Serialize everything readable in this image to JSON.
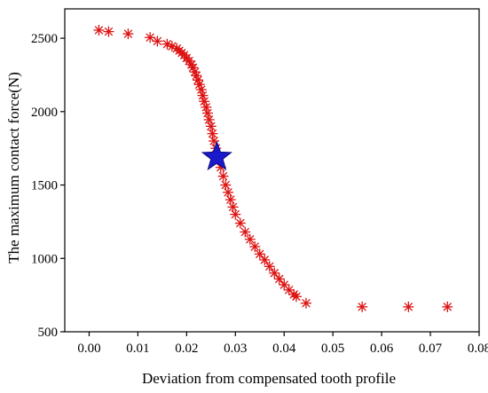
{
  "chart_data": {
    "type": "scatter",
    "title": "",
    "xlabel": "Deviation from compensated tooth profile",
    "ylabel": "The maximum contact force(N)",
    "xlim": [
      -0.005,
      0.08
    ],
    "ylim": [
      500,
      2700
    ],
    "x_ticks": [
      "0.00",
      "0.01",
      "0.02",
      "0.03",
      "0.04",
      "0.05",
      "0.06",
      "0.07",
      "0.08"
    ],
    "y_ticks": [
      "500",
      "1000",
      "1500",
      "2000",
      "2500"
    ],
    "grid": false,
    "legend": "none",
    "colors": {
      "points": "#dd1111",
      "highlight": "#1a1acc"
    },
    "series": [
      {
        "marker": "asterisk",
        "x": [
          0.002,
          0.004,
          0.008,
          0.0125,
          0.014,
          0.016,
          0.017,
          0.018,
          0.0185,
          0.019,
          0.0195,
          0.02,
          0.0205,
          0.021,
          0.0213,
          0.0217,
          0.022,
          0.0223,
          0.0226,
          0.023,
          0.0233,
          0.0236,
          0.024,
          0.0243,
          0.0246,
          0.025,
          0.0253,
          0.0256,
          0.026,
          0.0265,
          0.027,
          0.0275,
          0.028,
          0.0285,
          0.029,
          0.0295,
          0.03,
          0.031,
          0.032,
          0.033,
          0.034,
          0.035,
          0.036,
          0.037,
          0.038,
          0.039,
          0.04,
          0.041,
          0.042,
          0.0425,
          0.0445,
          0.056,
          0.0655,
          0.0735
        ],
        "y": [
          2555,
          2545,
          2530,
          2505,
          2480,
          2460,
          2445,
          2430,
          2415,
          2400,
          2385,
          2365,
          2345,
          2320,
          2300,
          2270,
          2245,
          2215,
          2185,
          2150,
          2110,
          2070,
          2030,
          1990,
          1945,
          1900,
          1850,
          1800,
          1750,
          1680,
          1620,
          1560,
          1500,
          1450,
          1400,
          1350,
          1300,
          1240,
          1180,
          1130,
          1080,
          1030,
          990,
          945,
          900,
          860,
          820,
          785,
          755,
          740,
          695,
          670,
          670,
          670
        ]
      },
      {
        "marker": "star",
        "x": [
          0.0262
        ],
        "y": [
          1690
        ]
      }
    ]
  }
}
